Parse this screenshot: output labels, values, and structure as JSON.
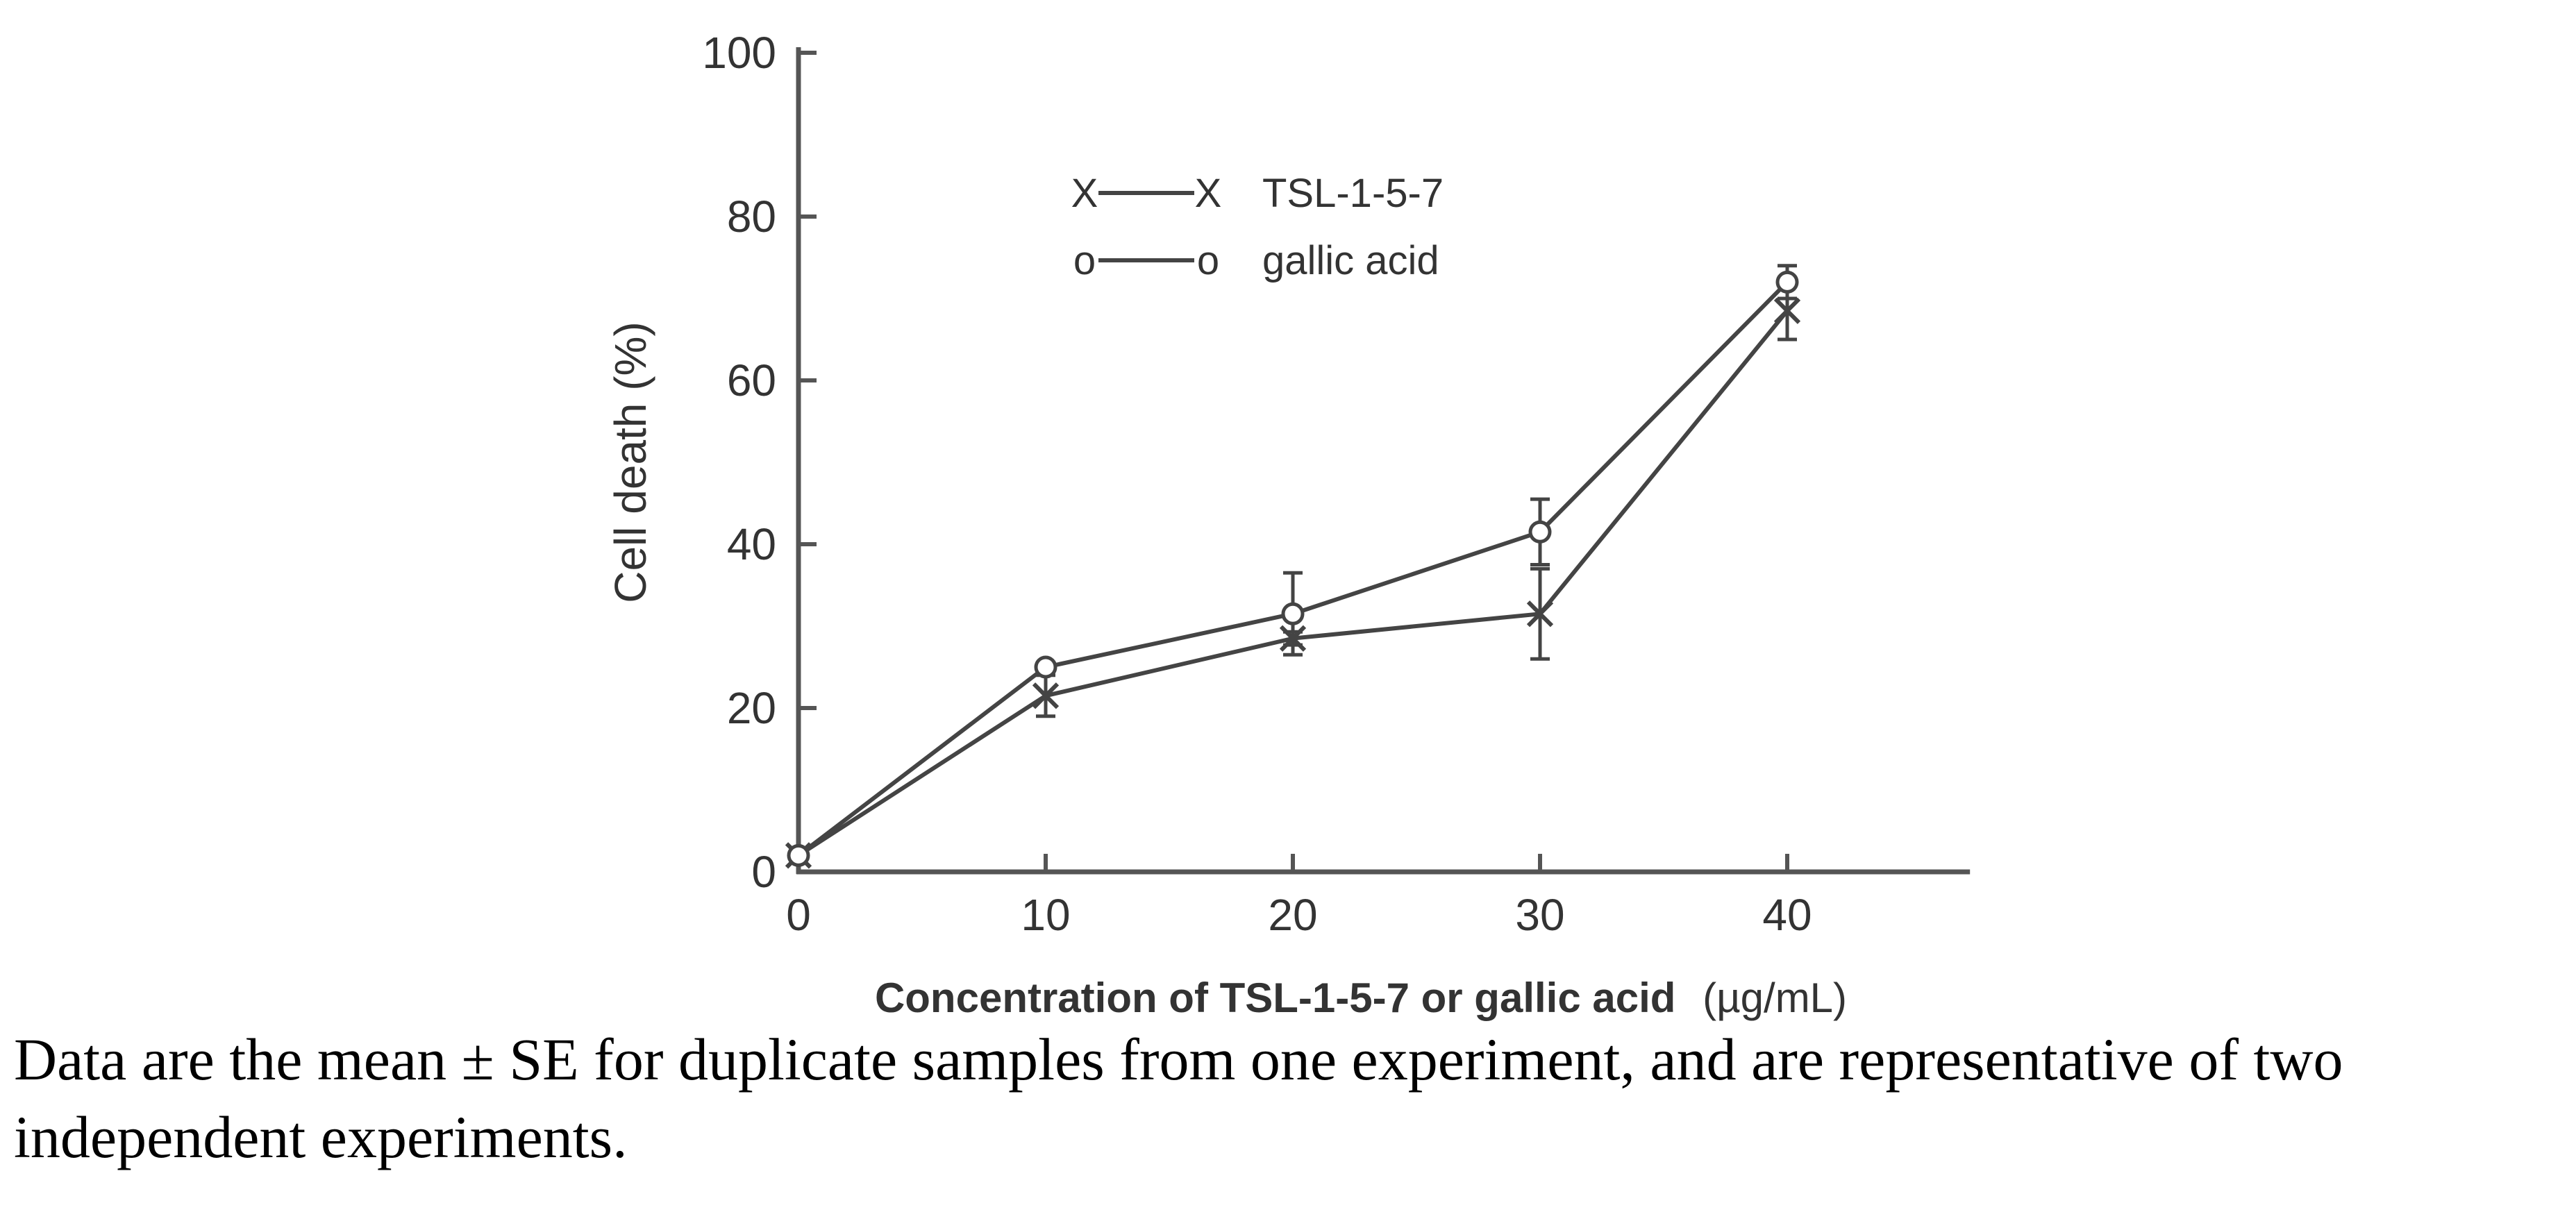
{
  "chart_data": {
    "type": "line",
    "x": [
      0,
      10,
      20,
      30,
      40
    ],
    "xlim": [
      0,
      47
    ],
    "ylim": [
      0,
      100
    ],
    "xticks": [
      0,
      10,
      20,
      30,
      40
    ],
    "yticks": [
      0,
      20,
      40,
      60,
      80,
      100
    ],
    "xlabel_main": "Concentration of TSL-1-5-7 or gallic acid",
    "xlabel_unit": "(µg/mL)",
    "ylabel": "Cell death (%)",
    "legend_position": "upper-left",
    "grid": false,
    "line_color": "#444444",
    "series": [
      {
        "name": "TSL-1-5-7",
        "marker": "x",
        "marker_glyph": "X",
        "values": [
          2,
          21.5,
          28.5,
          31.5,
          68.5
        ],
        "errors": [
          0,
          2.5,
          0.8,
          5.5,
          3.5
        ]
      },
      {
        "name": "gallic acid",
        "marker": "circle",
        "marker_glyph": "o",
        "values": [
          2,
          25,
          31.5,
          41.5,
          72
        ],
        "errors": [
          0,
          0.5,
          5,
          4,
          2
        ]
      }
    ]
  },
  "caption": "Data are the mean ± SE for duplicate samples from one experiment, and are representative of two independent experiments."
}
